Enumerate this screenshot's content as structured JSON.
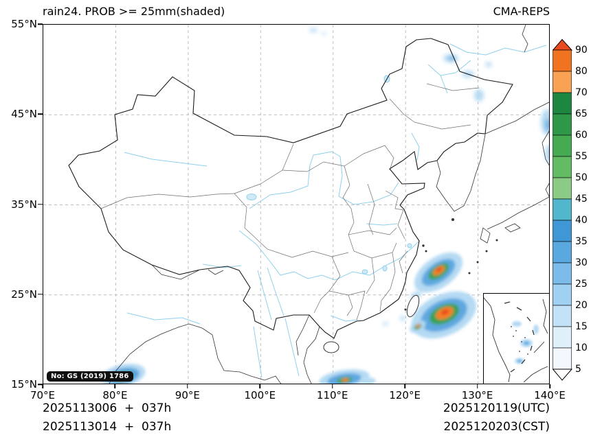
{
  "header": {
    "title": "rain24. PROB >= 25mm(shaded)",
    "model": "CMA-REPS"
  },
  "axes": {
    "x_ticks": [
      "70°E",
      "80°E",
      "90°E",
      "100°E",
      "110°E",
      "120°E",
      "130°E",
      "140°E"
    ],
    "y_ticks": [
      "55°N",
      "45°N",
      "35°N",
      "25°N",
      "15°N"
    ]
  },
  "colorbar": {
    "ticks": [
      "90",
      "80",
      "70",
      "65",
      "60",
      "55",
      "50",
      "45",
      "40",
      "35",
      "30",
      "25",
      "20",
      "15",
      "10",
      "5"
    ],
    "segment_colors": [
      "#f0741f",
      "#f9a254",
      "#1d8641",
      "#2f9848",
      "#45aa51",
      "#63bb63",
      "#8ccb85",
      "#52b7cd",
      "#3f97d5",
      "#5aa8e0",
      "#7cbceb",
      "#a0d0f2",
      "#c3e2f8",
      "#e0f0fb",
      "#f2f8fd"
    ],
    "arrow_top_color": "#e8491e",
    "arrow_bottom_color": "#ffffff"
  },
  "footer": {
    "init_utc": "2025113006  +  037h",
    "init_cst": "2025113014  +  037h",
    "valid_utc": "2025120119(UTC)",
    "valid_cst": "2025120203(CST)"
  },
  "map": {
    "license": "No: GS (2019) 1786"
  }
}
